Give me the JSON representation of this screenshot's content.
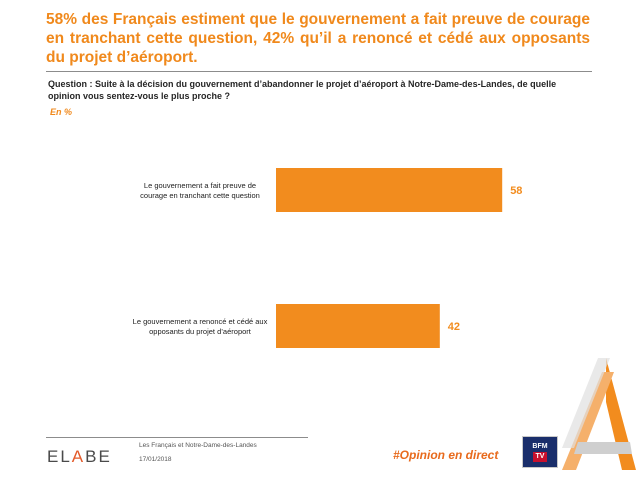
{
  "header": {
    "headline": "58% des Français estiment que le gouvernement a fait preuve de courage en tranchant cette question, 42% qu’il a renoncé et cédé aux opposants du projet d’aéroport.",
    "question": "Question : Suite à la décision du gouvernement d’abandonner le projet d’aéroport à Notre-Dame-des-Landes, de quelle opinion vous sentez-vous le plus proche ?",
    "unit": "En %"
  },
  "chart_data": {
    "type": "bar",
    "orientation": "horizontal",
    "categories": [
      "Le gouvernement a fait preuve de courage en tranchant cette question",
      "Le gouvernement a renoncé et cédé aux opposants du projet d’aéroport"
    ],
    "category_lines": [
      [
        "Le gouvernement a fait preuve de",
        "courage en tranchant cette question"
      ],
      [
        "Le gouvernement a renoncé et cédé aux",
        "opposants du projet d’aéroport"
      ]
    ],
    "values": [
      58,
      42
    ],
    "value_labels": [
      "58",
      "42"
    ],
    "xlim": [
      0,
      100
    ],
    "grid": false,
    "legend": "none",
    "bar_color": "#f28c1e",
    "label_color": "#f28c1e"
  },
  "footer": {
    "logo_text_parts": [
      "EL",
      "A",
      "BE"
    ],
    "title": "Les Français et Notre-Dame-des-Landes",
    "date": "17/01/2018",
    "hashtag": "#Opinion en direct",
    "bfm_line1": "BFM",
    "bfm_line2": "TV"
  },
  "colors": {
    "accent": "#f0891c",
    "bfm_blue": "#1a2e6b",
    "bfm_red": "#c8102e"
  },
  "icons": {
    "bfm_logo": "bfmtv-logo",
    "a_logo": "a-logo"
  }
}
